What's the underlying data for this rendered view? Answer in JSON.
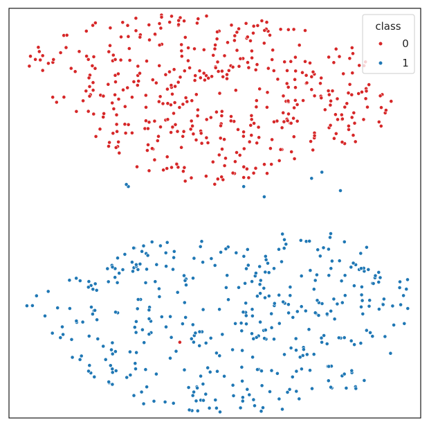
{
  "chart_data": {
    "type": "scatter",
    "title": "",
    "xlabel": "",
    "ylabel": "",
    "xlim": [
      -10,
      10
    ],
    "ylim": [
      -10,
      10
    ],
    "grid": false,
    "axes_ticks": false,
    "legend": {
      "title": "class",
      "placement": "top-right",
      "entries": [
        {
          "label": "0",
          "color": "#d62728"
        },
        {
          "label": "1",
          "color": "#1f77b4"
        }
      ]
    },
    "series": [
      {
        "name": "0",
        "color": "#d62728",
        "clusters": [
          {
            "n": 440,
            "seed": 11,
            "center": [
              0.3,
              5.6
            ],
            "spread": [
              7.2,
              3.0
            ],
            "bounds": [
              [
                -9.1,
                7.0
              ],
              [
                -9.0,
                8.0
              ],
              [
                -6.5,
                9.2
              ],
              [
                -2.0,
                9.8
              ],
              [
                3.0,
                9.4
              ],
              [
                7.0,
                8.2
              ],
              [
                8.8,
                5.5
              ],
              [
                8.4,
                4.2
              ],
              [
                5.5,
                2.8
              ],
              [
                1.2,
                1.2
              ],
              [
                -1.5,
                1.5
              ],
              [
                -4.2,
                2.4
              ],
              [
                -7.5,
                5.2
              ]
            ]
          }
        ],
        "extra_points": [
          [
            6.2,
            4.6
          ],
          [
            -4.8,
            3.2
          ]
        ]
      },
      {
        "name": "1",
        "color": "#1f77b4",
        "clusters": [
          {
            "n": 400,
            "seed": 29,
            "center": [
              1.0,
              -5.6
            ],
            "spread": [
              7.6,
              3.0
            ],
            "bounds": [
              [
                -9.3,
                -4.2
              ],
              [
                -6.0,
                -2.6
              ],
              [
                -2.5,
                -1.0
              ],
              [
                1.0,
                -1.7
              ],
              [
                4.0,
                -0.8
              ],
              [
                6.0,
                -0.6
              ],
              [
                8.2,
                -2.0
              ],
              [
                9.7,
                -3.3
              ],
              [
                9.0,
                -6.5
              ],
              [
                6.5,
                -8.9
              ],
              [
                3.5,
                -9.6
              ],
              [
                0.2,
                -9.8
              ],
              [
                -3.5,
                -9.4
              ],
              [
                -6.5,
                -7.7
              ],
              [
                -9.5,
                -5.0
              ]
            ]
          }
        ],
        "extra_points": [
          [
            -4.2,
            1.3
          ],
          [
            -4.3,
            1.4
          ],
          [
            1.4,
            1.3
          ],
          [
            2.4,
            0.8
          ],
          [
            6.1,
            1.1
          ],
          [
            4.7,
            1.7
          ],
          [
            5.2,
            2.0
          ]
        ]
      }
    ],
    "stray_points": [
      {
        "series": "0",
        "x": -1.7,
        "y": -6.3
      }
    ]
  }
}
